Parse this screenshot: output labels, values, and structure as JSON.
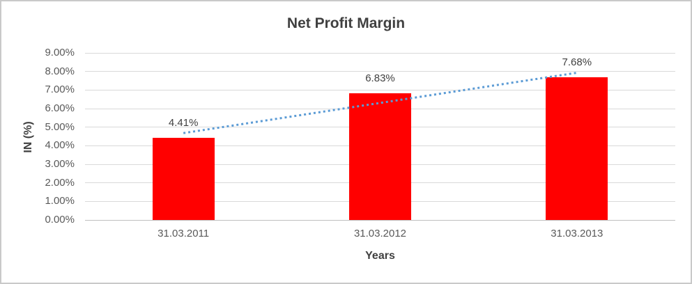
{
  "chart_data": {
    "type": "bar",
    "title": "Net Profit Margin",
    "xlabel": "Years",
    "ylabel": "IN (%)",
    "categories": [
      "31.03.2011",
      "31.03.2012",
      "31.03.2013"
    ],
    "values": [
      4.41,
      6.83,
      7.68
    ],
    "value_labels": [
      "4.41%",
      "6.83%",
      "7.68%"
    ],
    "ylim": [
      0,
      9
    ],
    "ytick_step": 1,
    "ytick_labels": [
      "0.00%",
      "1.00%",
      "2.00%",
      "3.00%",
      "4.00%",
      "5.00%",
      "6.00%",
      "7.00%",
      "8.00%",
      "9.00%"
    ],
    "grid": true,
    "legend": "none",
    "bar_color": "#ff0000",
    "trendline": {
      "style": "dotted",
      "color": "#5b9bd5",
      "from_value": 4.68,
      "to_value": 7.93
    }
  }
}
